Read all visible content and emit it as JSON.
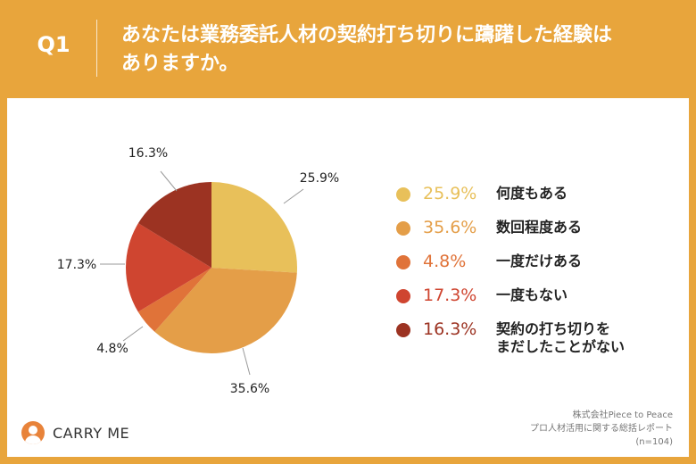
{
  "header": {
    "question_number": "Q1",
    "question_line1": "あなたは業務委託人材の契約打ち切りに躊躇した経験は",
    "question_line2": "ありますか。"
  },
  "chart_data": {
    "type": "pie",
    "start_angle_deg": 0,
    "direction": "clockwise",
    "categories": [
      "何度もある",
      "数回程度ある",
      "一度だけある",
      "一度もない",
      "契約の打ち切りをまだしたことがない"
    ],
    "values": [
      25.9,
      35.6,
      4.8,
      17.3,
      16.3
    ],
    "data_labels": [
      "25.9%",
      "35.6%",
      "4.8%",
      "17.3%",
      "16.3%"
    ],
    "colors": [
      "#E8C05A",
      "#E49E48",
      "#E07339",
      "#CF4530",
      "#9C3322"
    ]
  },
  "legend": [
    {
      "pct": "25.9%",
      "label_lines": [
        "何度もある"
      ],
      "color": "#E8C05A"
    },
    {
      "pct": "35.6%",
      "label_lines": [
        "数回程度ある"
      ],
      "color": "#E49E48"
    },
    {
      "pct": "4.8%",
      "label_lines": [
        "一度だけある"
      ],
      "color": "#E07339"
    },
    {
      "pct": "17.3%",
      "label_lines": [
        "一度もない"
      ],
      "color": "#CF4530"
    },
    {
      "pct": "16.3%",
      "label_lines": [
        "契約の打ち切りを",
        "まだしたことがない"
      ],
      "color": "#9C3322"
    }
  ],
  "footer": {
    "brand": "CARRY ME",
    "source_line1": "株式会社Piece to Peace",
    "source_line2": "プロ人材活用に関する総括レポート",
    "source_line3": "(n=104)"
  }
}
